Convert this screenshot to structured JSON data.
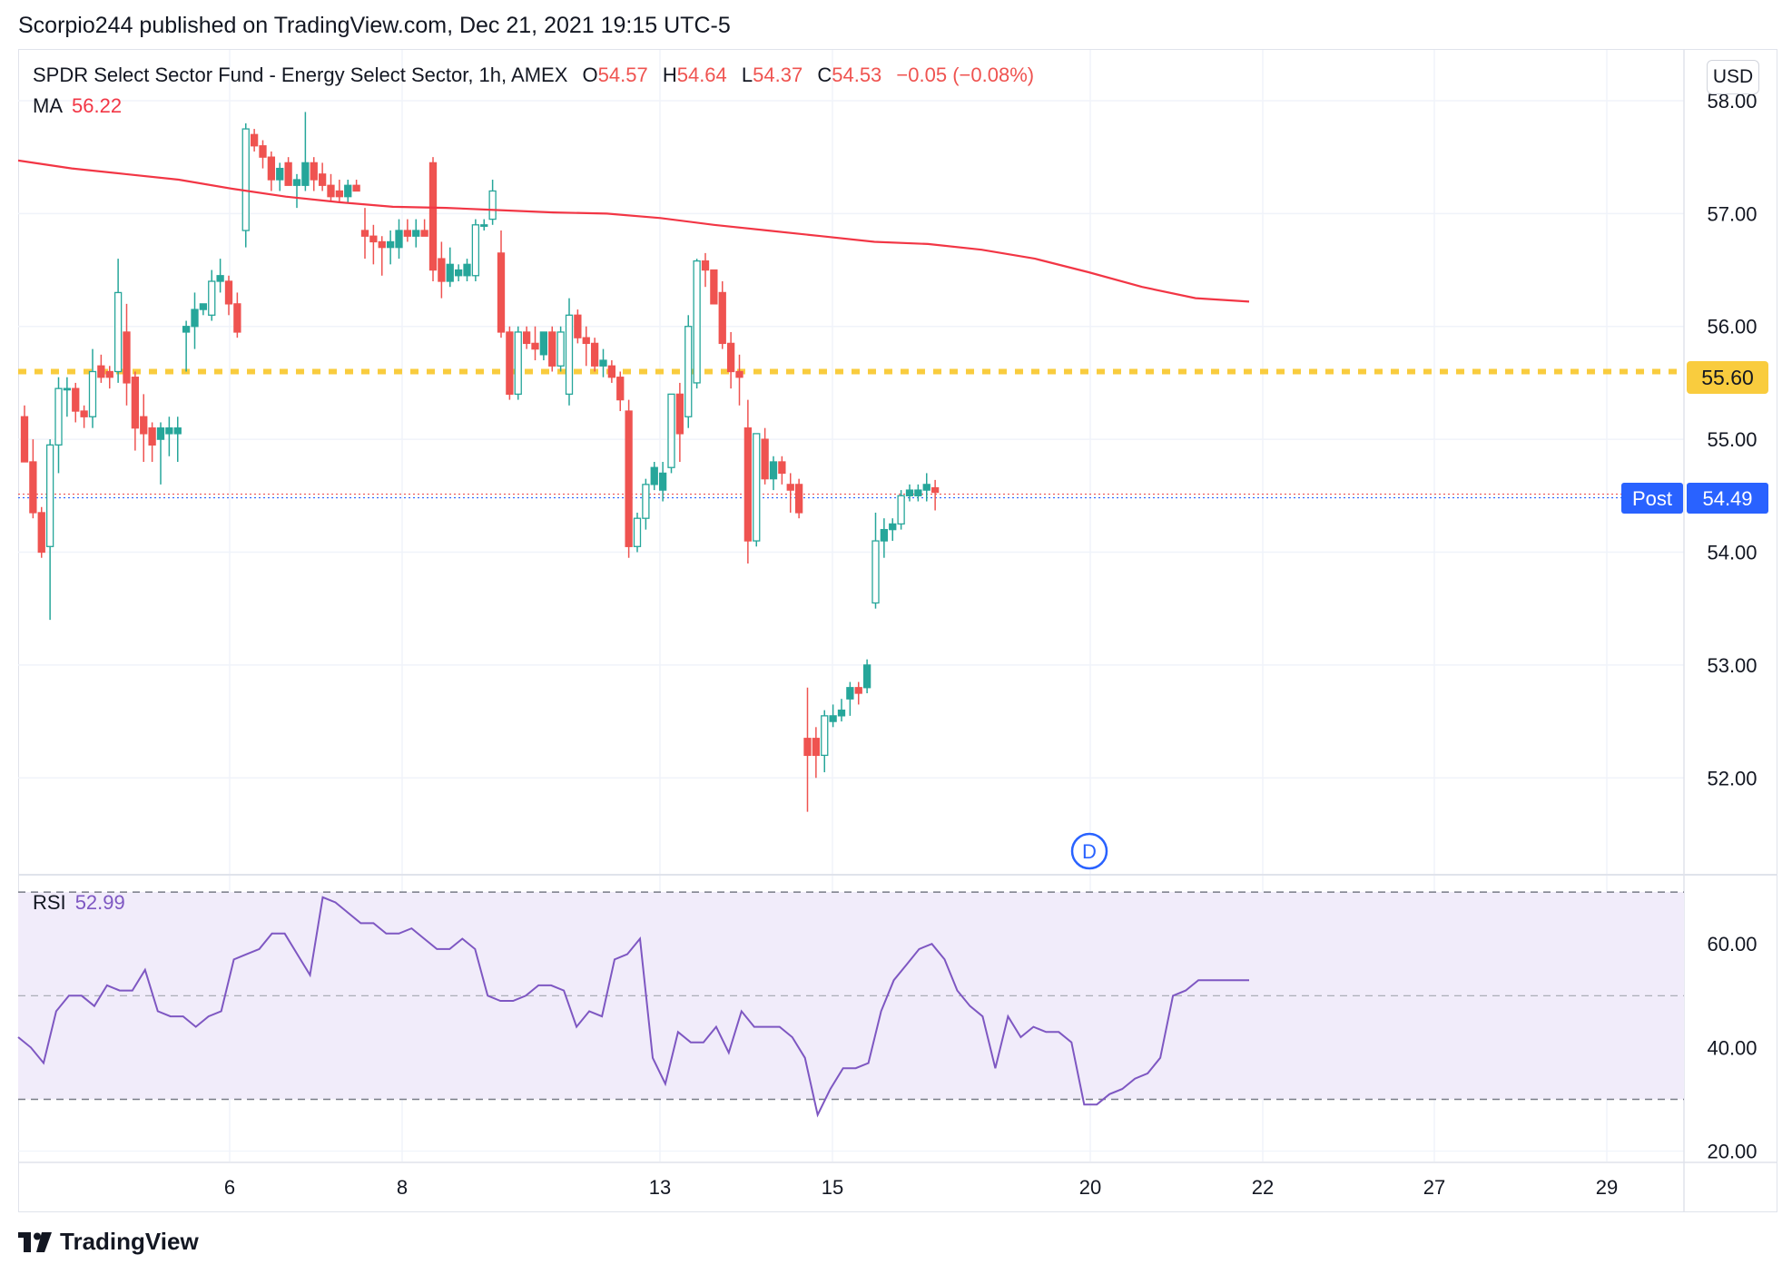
{
  "header": {
    "published_text": "Scorpio244 published on TradingView.com, Dec 21, 2021 19:15 UTC-5"
  },
  "legend": {
    "symbol": "SPDR Select Sector Fund - Energy Select Sector, 1h, AMEX",
    "o_label": "O",
    "o_value": "54.57",
    "h_label": "H",
    "h_value": "54.64",
    "l_label": "L",
    "l_value": "54.37",
    "c_label": "C",
    "c_value": "54.53",
    "change": "−0.05 (−0.08%)",
    "ma_label": "MA",
    "ma_value": "56.22",
    "rsi_label": "RSI",
    "rsi_value": "52.99"
  },
  "currency": "USD",
  "price_tags": {
    "level_value": "55.60",
    "post_label": "Post",
    "post_value": "54.49"
  },
  "dividend_marker": "D",
  "footer": {
    "brand": "TradingView"
  },
  "colors": {
    "up": "#26a69a",
    "down": "#ef5350",
    "ma": "#f23645",
    "level": "#f9cc3e",
    "post": "#2962ff",
    "rsi": "#7e57c2",
    "rsi_band": "#f1ecfa"
  },
  "chart_data": [
    {
      "type": "candlestick",
      "title": "SPDR Select Sector Fund - Energy Select Sector, 1h, AMEX",
      "x_ticks": [
        "6",
        "8",
        "13",
        "15",
        "20",
        "22",
        "27",
        "29"
      ],
      "y_ticks": [
        "52.00",
        "53.00",
        "54.00",
        "55.00",
        "56.00",
        "57.00",
        "58.00"
      ],
      "ylim": [
        51.15,
        58.45
      ],
      "horizontal_level": 55.6,
      "post_price": 54.49,
      "grid": true,
      "ma_series": {
        "name": "MA",
        "values": [
          57.47,
          57.4,
          57.35,
          57.3,
          57.22,
          57.15,
          57.1,
          57.06,
          57.05,
          57.03,
          57.01,
          57.0,
          56.96,
          56.9,
          56.85,
          56.8,
          56.75,
          56.73,
          56.68,
          56.6,
          56.48,
          56.35,
          56.25,
          56.22
        ]
      },
      "candles": [
        {
          "o": 55.2,
          "h": 55.3,
          "l": 54.8,
          "c": 54.8
        },
        {
          "o": 54.8,
          "h": 55.0,
          "l": 54.3,
          "c": 54.35
        },
        {
          "o": 54.35,
          "h": 54.4,
          "l": 53.95,
          "c": 54.0
        },
        {
          "o": 54.05,
          "h": 55.0,
          "l": 53.4,
          "c": 54.95
        },
        {
          "o": 54.95,
          "h": 55.55,
          "l": 54.7,
          "c": 55.45
        },
        {
          "o": 55.45,
          "h": 55.55,
          "l": 55.2,
          "c": 55.45
        },
        {
          "o": 55.45,
          "h": 55.5,
          "l": 55.15,
          "c": 55.25
        },
        {
          "o": 55.25,
          "h": 55.3,
          "l": 55.1,
          "c": 55.2
        },
        {
          "o": 55.2,
          "h": 55.8,
          "l": 55.1,
          "c": 55.6
        },
        {
          "o": 55.65,
          "h": 55.75,
          "l": 55.5,
          "c": 55.55
        },
        {
          "o": 55.6,
          "h": 55.65,
          "l": 55.45,
          "c": 55.55
        },
        {
          "o": 55.6,
          "h": 56.6,
          "l": 55.5,
          "c": 56.3
        },
        {
          "o": 55.95,
          "h": 56.2,
          "l": 55.3,
          "c": 55.5
        },
        {
          "o": 55.55,
          "h": 55.6,
          "l": 54.9,
          "c": 55.1
        },
        {
          "o": 55.2,
          "h": 55.4,
          "l": 54.8,
          "c": 55.05
        },
        {
          "o": 55.1,
          "h": 55.15,
          "l": 54.8,
          "c": 54.95
        },
        {
          "o": 55.0,
          "h": 55.15,
          "l": 54.6,
          "c": 55.1
        },
        {
          "o": 55.05,
          "h": 55.2,
          "l": 54.85,
          "c": 55.1
        },
        {
          "o": 55.05,
          "h": 55.2,
          "l": 54.8,
          "c": 55.1
        },
        {
          "o": 55.95,
          "h": 56.05,
          "l": 55.6,
          "c": 56.0
        },
        {
          "o": 56.0,
          "h": 56.3,
          "l": 55.8,
          "c": 56.15
        },
        {
          "o": 56.15,
          "h": 56.2,
          "l": 56.1,
          "c": 56.2
        },
        {
          "o": 56.1,
          "h": 56.5,
          "l": 56.05,
          "c": 56.4
        },
        {
          "o": 56.4,
          "h": 56.6,
          "l": 56.3,
          "c": 56.45
        },
        {
          "o": 56.4,
          "h": 56.45,
          "l": 56.1,
          "c": 56.2
        },
        {
          "o": 56.2,
          "h": 56.3,
          "l": 55.9,
          "c": 55.95
        },
        {
          "o": 56.85,
          "h": 57.8,
          "l": 56.7,
          "c": 57.75
        },
        {
          "o": 57.7,
          "h": 57.75,
          "l": 57.55,
          "c": 57.6
        },
        {
          "o": 57.6,
          "h": 57.65,
          "l": 57.4,
          "c": 57.5
        },
        {
          "o": 57.5,
          "h": 57.55,
          "l": 57.2,
          "c": 57.3
        },
        {
          "o": 57.3,
          "h": 57.45,
          "l": 57.2,
          "c": 57.4
        },
        {
          "o": 57.45,
          "h": 57.5,
          "l": 57.25,
          "c": 57.25
        },
        {
          "o": 57.25,
          "h": 57.35,
          "l": 57.05,
          "c": 57.3
        },
        {
          "o": 57.25,
          "h": 57.9,
          "l": 57.2,
          "c": 57.45
        },
        {
          "o": 57.45,
          "h": 57.5,
          "l": 57.2,
          "c": 57.3
        },
        {
          "o": 57.35,
          "h": 57.45,
          "l": 57.2,
          "c": 57.25
        },
        {
          "o": 57.25,
          "h": 57.35,
          "l": 57.1,
          "c": 57.15
        },
        {
          "o": 57.2,
          "h": 57.3,
          "l": 57.1,
          "c": 57.15
        },
        {
          "o": 57.15,
          "h": 57.3,
          "l": 57.1,
          "c": 57.25
        },
        {
          "o": 57.25,
          "h": 57.3,
          "l": 57.2,
          "c": 57.2
        },
        {
          "o": 56.85,
          "h": 57.05,
          "l": 56.6,
          "c": 56.8
        },
        {
          "o": 56.8,
          "h": 56.9,
          "l": 56.55,
          "c": 56.75
        },
        {
          "o": 56.75,
          "h": 56.8,
          "l": 56.45,
          "c": 56.7
        },
        {
          "o": 56.7,
          "h": 56.85,
          "l": 56.55,
          "c": 56.75
        },
        {
          "o": 56.7,
          "h": 56.95,
          "l": 56.6,
          "c": 56.85
        },
        {
          "o": 56.85,
          "h": 56.95,
          "l": 56.75,
          "c": 56.8
        },
        {
          "o": 56.8,
          "h": 56.95,
          "l": 56.7,
          "c": 56.85
        },
        {
          "o": 56.85,
          "h": 56.95,
          "l": 56.8,
          "c": 56.8
        },
        {
          "o": 57.45,
          "h": 57.5,
          "l": 56.4,
          "c": 56.5
        },
        {
          "o": 56.6,
          "h": 56.75,
          "l": 56.25,
          "c": 56.4
        },
        {
          "o": 56.4,
          "h": 56.7,
          "l": 56.35,
          "c": 56.55
        },
        {
          "o": 56.45,
          "h": 56.55,
          "l": 56.4,
          "c": 56.5
        },
        {
          "o": 56.45,
          "h": 56.6,
          "l": 56.4,
          "c": 56.55
        },
        {
          "o": 56.45,
          "h": 56.95,
          "l": 56.4,
          "c": 56.9
        },
        {
          "o": 56.9,
          "h": 56.95,
          "l": 56.85,
          "c": 56.9
        },
        {
          "o": 56.95,
          "h": 57.3,
          "l": 56.9,
          "c": 57.2
        },
        {
          "o": 56.65,
          "h": 56.85,
          "l": 55.9,
          "c": 55.95
        },
        {
          "o": 55.95,
          "h": 56.0,
          "l": 55.35,
          "c": 55.4
        },
        {
          "o": 55.4,
          "h": 56.0,
          "l": 55.35,
          "c": 55.95
        },
        {
          "o": 55.95,
          "h": 56.0,
          "l": 55.8,
          "c": 55.85
        },
        {
          "o": 55.85,
          "h": 56.0,
          "l": 55.7,
          "c": 55.8
        },
        {
          "o": 55.75,
          "h": 55.95,
          "l": 55.7,
          "c": 55.95
        },
        {
          "o": 55.95,
          "h": 56.0,
          "l": 55.6,
          "c": 55.65
        },
        {
          "o": 55.65,
          "h": 56.0,
          "l": 55.6,
          "c": 55.95
        },
        {
          "o": 55.4,
          "h": 56.25,
          "l": 55.3,
          "c": 56.1
        },
        {
          "o": 56.1,
          "h": 56.15,
          "l": 55.85,
          "c": 55.9
        },
        {
          "o": 55.9,
          "h": 56.0,
          "l": 55.65,
          "c": 55.85
        },
        {
          "o": 55.85,
          "h": 55.9,
          "l": 55.6,
          "c": 55.65
        },
        {
          "o": 55.65,
          "h": 55.8,
          "l": 55.55,
          "c": 55.7
        },
        {
          "o": 55.65,
          "h": 55.7,
          "l": 55.5,
          "c": 55.55
        },
        {
          "o": 55.55,
          "h": 55.6,
          "l": 55.25,
          "c": 55.35
        },
        {
          "o": 55.25,
          "h": 55.35,
          "l": 53.95,
          "c": 54.05
        },
        {
          "o": 54.05,
          "h": 54.35,
          "l": 54.0,
          "c": 54.3
        },
        {
          "o": 54.3,
          "h": 54.65,
          "l": 54.2,
          "c": 54.6
        },
        {
          "o": 54.6,
          "h": 54.8,
          "l": 54.55,
          "c": 54.75
        },
        {
          "o": 54.55,
          "h": 54.8,
          "l": 54.45,
          "c": 54.7
        },
        {
          "o": 54.75,
          "h": 55.4,
          "l": 54.7,
          "c": 55.4
        },
        {
          "o": 55.4,
          "h": 55.5,
          "l": 54.8,
          "c": 55.05
        },
        {
          "o": 55.2,
          "h": 56.1,
          "l": 55.1,
          "c": 56.0
        },
        {
          "o": 55.5,
          "h": 56.6,
          "l": 55.45,
          "c": 56.58
        },
        {
          "o": 56.58,
          "h": 56.65,
          "l": 56.35,
          "c": 56.5
        },
        {
          "o": 56.5,
          "h": 56.5,
          "l": 56.2,
          "c": 56.2
        },
        {
          "o": 56.3,
          "h": 56.4,
          "l": 55.8,
          "c": 55.85
        },
        {
          "o": 55.85,
          "h": 55.95,
          "l": 55.45,
          "c": 55.6
        },
        {
          "o": 55.6,
          "h": 55.75,
          "l": 55.3,
          "c": 55.55
        },
        {
          "o": 55.1,
          "h": 55.35,
          "l": 53.9,
          "c": 54.1
        },
        {
          "o": 54.1,
          "h": 55.05,
          "l": 54.05,
          "c": 55.05
        },
        {
          "o": 55.0,
          "h": 55.1,
          "l": 54.6,
          "c": 54.65
        },
        {
          "o": 54.65,
          "h": 54.85,
          "l": 54.55,
          "c": 54.8
        },
        {
          "o": 54.8,
          "h": 54.85,
          "l": 54.6,
          "c": 54.7
        },
        {
          "o": 54.6,
          "h": 54.7,
          "l": 54.35,
          "c": 54.55
        },
        {
          "o": 54.6,
          "h": 54.65,
          "l": 54.3,
          "c": 54.35
        },
        {
          "o": 52.35,
          "h": 52.8,
          "l": 51.7,
          "c": 52.2
        },
        {
          "o": 52.35,
          "h": 52.45,
          "l": 52.0,
          "c": 52.2
        },
        {
          "o": 52.2,
          "h": 52.6,
          "l": 52.05,
          "c": 52.55
        },
        {
          "o": 52.5,
          "h": 52.65,
          "l": 52.45,
          "c": 52.55
        },
        {
          "o": 52.55,
          "h": 52.7,
          "l": 52.5,
          "c": 52.6
        },
        {
          "o": 52.7,
          "h": 52.85,
          "l": 52.55,
          "c": 52.8
        },
        {
          "o": 52.8,
          "h": 52.85,
          "l": 52.65,
          "c": 52.75
        },
        {
          "o": 52.8,
          "h": 53.05,
          "l": 52.75,
          "c": 53.0
        },
        {
          "o": 53.55,
          "h": 54.35,
          "l": 53.5,
          "c": 54.1
        },
        {
          "o": 54.1,
          "h": 54.3,
          "l": 53.95,
          "c": 54.2
        },
        {
          "o": 54.2,
          "h": 54.3,
          "l": 54.1,
          "c": 54.25
        },
        {
          "o": 54.25,
          "h": 54.55,
          "l": 54.2,
          "c": 54.5
        },
        {
          "o": 54.5,
          "h": 54.6,
          "l": 54.45,
          "c": 54.55
        },
        {
          "o": 54.5,
          "h": 54.6,
          "l": 54.45,
          "c": 54.55
        },
        {
          "o": 54.55,
          "h": 54.7,
          "l": 54.45,
          "c": 54.6
        },
        {
          "o": 54.57,
          "h": 54.64,
          "l": 54.37,
          "c": 54.53
        }
      ]
    },
    {
      "type": "line",
      "title": "RSI",
      "y_ticks": [
        "20.00",
        "40.00",
        "60.00"
      ],
      "ylim": [
        18,
        73
      ],
      "band": [
        30,
        70
      ],
      "midline": 50,
      "series": [
        {
          "name": "RSI",
          "values": [
            42,
            40,
            37,
            47,
            50,
            50,
            48,
            52,
            51,
            51,
            55,
            47,
            46,
            46,
            44,
            46,
            47,
            57,
            58,
            59,
            62,
            62,
            58,
            54,
            69,
            68,
            66,
            64,
            64,
            62,
            62,
            63,
            61,
            59,
            59,
            61,
            59,
            50,
            49,
            49,
            50,
            52,
            52,
            51,
            44,
            47,
            46,
            57,
            58,
            61,
            38,
            33,
            43,
            41,
            41,
            44,
            39,
            47,
            44,
            44,
            44,
            42,
            38,
            27,
            32,
            36,
            36,
            37,
            47,
            53,
            56,
            59,
            60,
            57,
            51,
            48,
            46,
            36,
            46,
            42,
            44,
            43,
            43,
            41,
            29,
            29,
            31,
            32,
            34,
            35,
            38,
            50,
            51,
            53,
            53,
            53,
            53,
            53
          ]
        }
      ]
    }
  ]
}
